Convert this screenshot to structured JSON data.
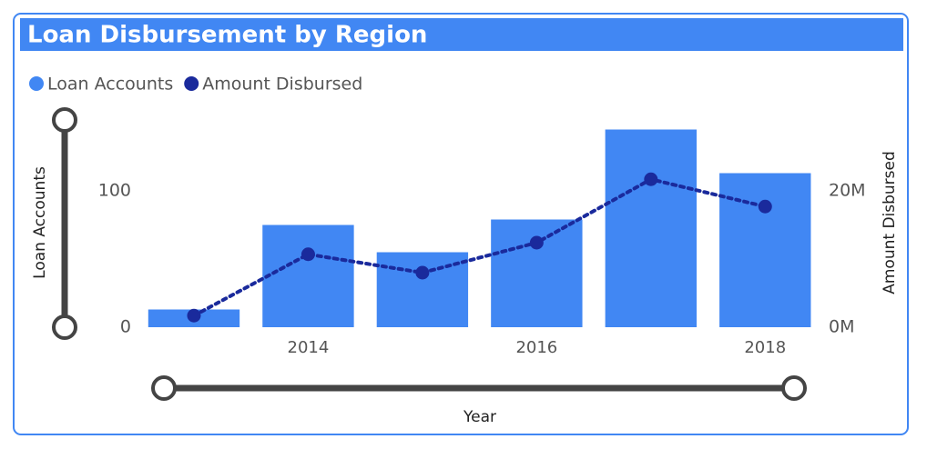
{
  "chart_data": {
    "type": "bar_line",
    "title": "Loan Disbursement by Region",
    "x_label": "Year",
    "y_label": "Loan Accounts",
    "y2_label": "Amount Disbursed",
    "x": [
      2013,
      2014,
      2015,
      2016,
      2017,
      2018
    ],
    "xlim": [
      2012.5,
      2018.5
    ],
    "xticks": [
      2014,
      2016,
      2018
    ],
    "ylim": [
      0,
      150
    ],
    "yticks": [
      0,
      100
    ],
    "y2lim": [
      0,
      30000000
    ],
    "y2ticks": [
      {
        "value": 0,
        "label": "0M"
      },
      {
        "value": 20000000,
        "label": "20M"
      }
    ],
    "legend": "top-left",
    "series": [
      {
        "name": "Loan Accounts",
        "kind": "bar",
        "color": "#4187f3",
        "values": [
          13,
          75,
          55,
          79,
          145,
          113
        ]
      },
      {
        "name": "Amount Disbursed",
        "kind": "line",
        "axis": "y2",
        "color": "#1a2a9c",
        "values": [
          1700000,
          10700000,
          8000000,
          12400000,
          21700000,
          17700000
        ]
      }
    ]
  }
}
